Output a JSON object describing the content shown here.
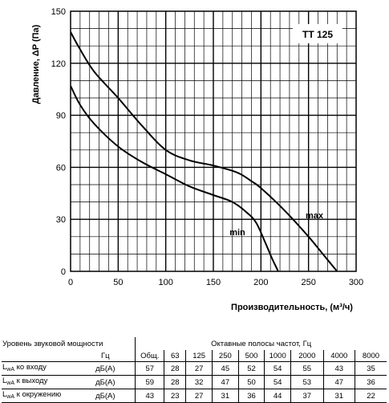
{
  "chart_data": {
    "type": "line",
    "model": "TT 125",
    "xlabel": "Производительность, (м³/ч)",
    "ylabel": "Давление, ΔP (Па)",
    "xlim": [
      0,
      300
    ],
    "ylim": [
      0,
      150
    ],
    "x_ticks": [
      0,
      50,
      100,
      150,
      200,
      250,
      300
    ],
    "y_ticks": [
      0,
      30,
      60,
      90,
      120,
      150
    ],
    "grid": true,
    "series": [
      {
        "name": "max",
        "x": [
          0,
          10,
          25,
          50,
          75,
          100,
          125,
          150,
          175,
          190,
          200,
          225,
          250,
          265,
          280
        ],
        "y": [
          138,
          128,
          115,
          100,
          84,
          70,
          64,
          61,
          57,
          52,
          48,
          35,
          20,
          10,
          0
        ]
      },
      {
        "name": "min",
        "x": [
          0,
          10,
          25,
          50,
          75,
          100,
          125,
          150,
          170,
          185,
          195,
          205,
          212,
          218,
          220
        ],
        "y": [
          107,
          96,
          85,
          72,
          63,
          56,
          49,
          44,
          40,
          34,
          28,
          16,
          7,
          0,
          -5
        ]
      }
    ]
  },
  "table": {
    "title": "Уровень звуковой мощности",
    "bands_title": "Октавные полосы частот, Гц",
    "unit_header": "Гц",
    "columns": [
      "Общ.",
      "63",
      "125",
      "250",
      "500",
      "1000",
      "2000",
      "4000",
      "8000"
    ],
    "rows": [
      {
        "label_main": "L",
        "label_sub": "wA",
        "label_rest": " ко входу",
        "unit": "дБ(A)",
        "values": [
          "57",
          "28",
          "27",
          "45",
          "52",
          "54",
          "55",
          "43",
          "35"
        ]
      },
      {
        "label_main": "L",
        "label_sub": "wA",
        "label_rest": " к выходу",
        "unit": "дБ(A)",
        "values": [
          "59",
          "28",
          "32",
          "47",
          "50",
          "54",
          "53",
          "47",
          "36"
        ]
      },
      {
        "label_main": "L",
        "label_sub": "wA",
        "label_rest": " к окружению",
        "unit": "дБ(A)",
        "values": [
          "43",
          "23",
          "27",
          "31",
          "36",
          "44",
          "37",
          "31",
          "22"
        ]
      }
    ]
  }
}
